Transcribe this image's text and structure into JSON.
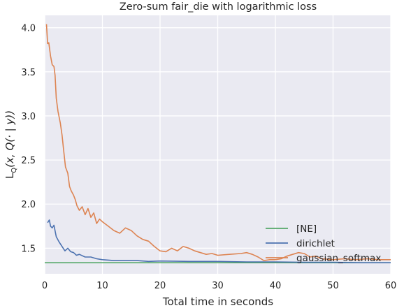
{
  "chart_data": {
    "type": "line",
    "title": "Zero-sum fair_die with logarithmic loss",
    "xlabel": "Total time in seconds",
    "ylabel": "L_Q(x, Q(· | y))",
    "ylabel_parts": {
      "L": "L",
      "sub": "Q",
      "rest": "(x, Q(· | y))"
    },
    "xlim": [
      0,
      60
    ],
    "ylim": [
      1.21,
      4.14
    ],
    "xticks": [
      0,
      10,
      20,
      30,
      40,
      50,
      60
    ],
    "xtick_labels": [
      "0",
      "10",
      "20",
      "30",
      "40",
      "50",
      "60"
    ],
    "yticks": [
      1.5,
      2.0,
      2.5,
      3.0,
      3.5,
      4.0
    ],
    "ytick_labels": [
      "1.5",
      "2.0",
      "2.5",
      "3.0",
      "3.5",
      "4.0"
    ],
    "grid": true,
    "legend_position": "lower-right",
    "series": [
      {
        "name": "[NE]",
        "color": "#55a868",
        "x": [
          0,
          60
        ],
        "y": [
          1.335,
          1.335
        ]
      },
      {
        "name": "dirichlet",
        "color": "#4c72b0",
        "x": [
          0.5,
          0.8,
          1.0,
          1.3,
          1.6,
          2.0,
          2.5,
          3.0,
          3.5,
          4.0,
          4.5,
          5.0,
          5.5,
          6.0,
          7.0,
          8.0,
          9.0,
          10.0,
          12.0,
          14.0,
          16.0,
          18.0,
          20.0,
          25.0,
          30.0,
          35.0,
          40.0,
          45.0,
          50.0,
          55.0,
          60.0
        ],
        "y": [
          1.79,
          1.82,
          1.75,
          1.73,
          1.76,
          1.63,
          1.57,
          1.52,
          1.47,
          1.5,
          1.46,
          1.45,
          1.42,
          1.43,
          1.4,
          1.4,
          1.38,
          1.37,
          1.36,
          1.36,
          1.36,
          1.35,
          1.355,
          1.35,
          1.35,
          1.345,
          1.345,
          1.34,
          1.34,
          1.335,
          1.335
        ]
      },
      {
        "name": "gaussian_softmax",
        "color": "#dd8452",
        "x": [
          0.3,
          0.5,
          0.7,
          1.0,
          1.3,
          1.6,
          1.8,
          2.0,
          2.3,
          2.7,
          3.0,
          3.3,
          3.6,
          4.0,
          4.3,
          4.6,
          5.0,
          5.3,
          5.6,
          6.0,
          6.5,
          7.0,
          7.5,
          8.0,
          8.5,
          9.0,
          9.5,
          10.0,
          11.0,
          12.0,
          13.0,
          14.0,
          15.0,
          16.0,
          17.0,
          18.0,
          19.0,
          20.0,
          21.0,
          22.0,
          23.0,
          24.0,
          25.0,
          26.0,
          27.0,
          28.0,
          29.0,
          30.0,
          32.0,
          34.0,
          35.0,
          36.0,
          37.0,
          38.0,
          39.0,
          40.0,
          41.0,
          42.0,
          43.0,
          44.0,
          45.0,
          46.0,
          47.0,
          48.0,
          50.0,
          52.0,
          54.0,
          56.0,
          58.0,
          60.0
        ],
        "y": [
          4.04,
          3.82,
          3.83,
          3.68,
          3.58,
          3.56,
          3.46,
          3.2,
          3.05,
          2.92,
          2.78,
          2.6,
          2.42,
          2.35,
          2.2,
          2.15,
          2.1,
          2.05,
          1.98,
          1.93,
          1.97,
          1.88,
          1.95,
          1.85,
          1.9,
          1.78,
          1.83,
          1.8,
          1.75,
          1.7,
          1.67,
          1.73,
          1.7,
          1.64,
          1.6,
          1.58,
          1.52,
          1.47,
          1.46,
          1.5,
          1.47,
          1.52,
          1.5,
          1.47,
          1.45,
          1.43,
          1.44,
          1.42,
          1.43,
          1.44,
          1.45,
          1.43,
          1.4,
          1.36,
          1.37,
          1.37,
          1.38,
          1.41,
          1.43,
          1.45,
          1.44,
          1.4,
          1.41,
          1.38,
          1.37,
          1.38,
          1.37,
          1.38,
          1.37,
          1.37
        ]
      }
    ]
  }
}
